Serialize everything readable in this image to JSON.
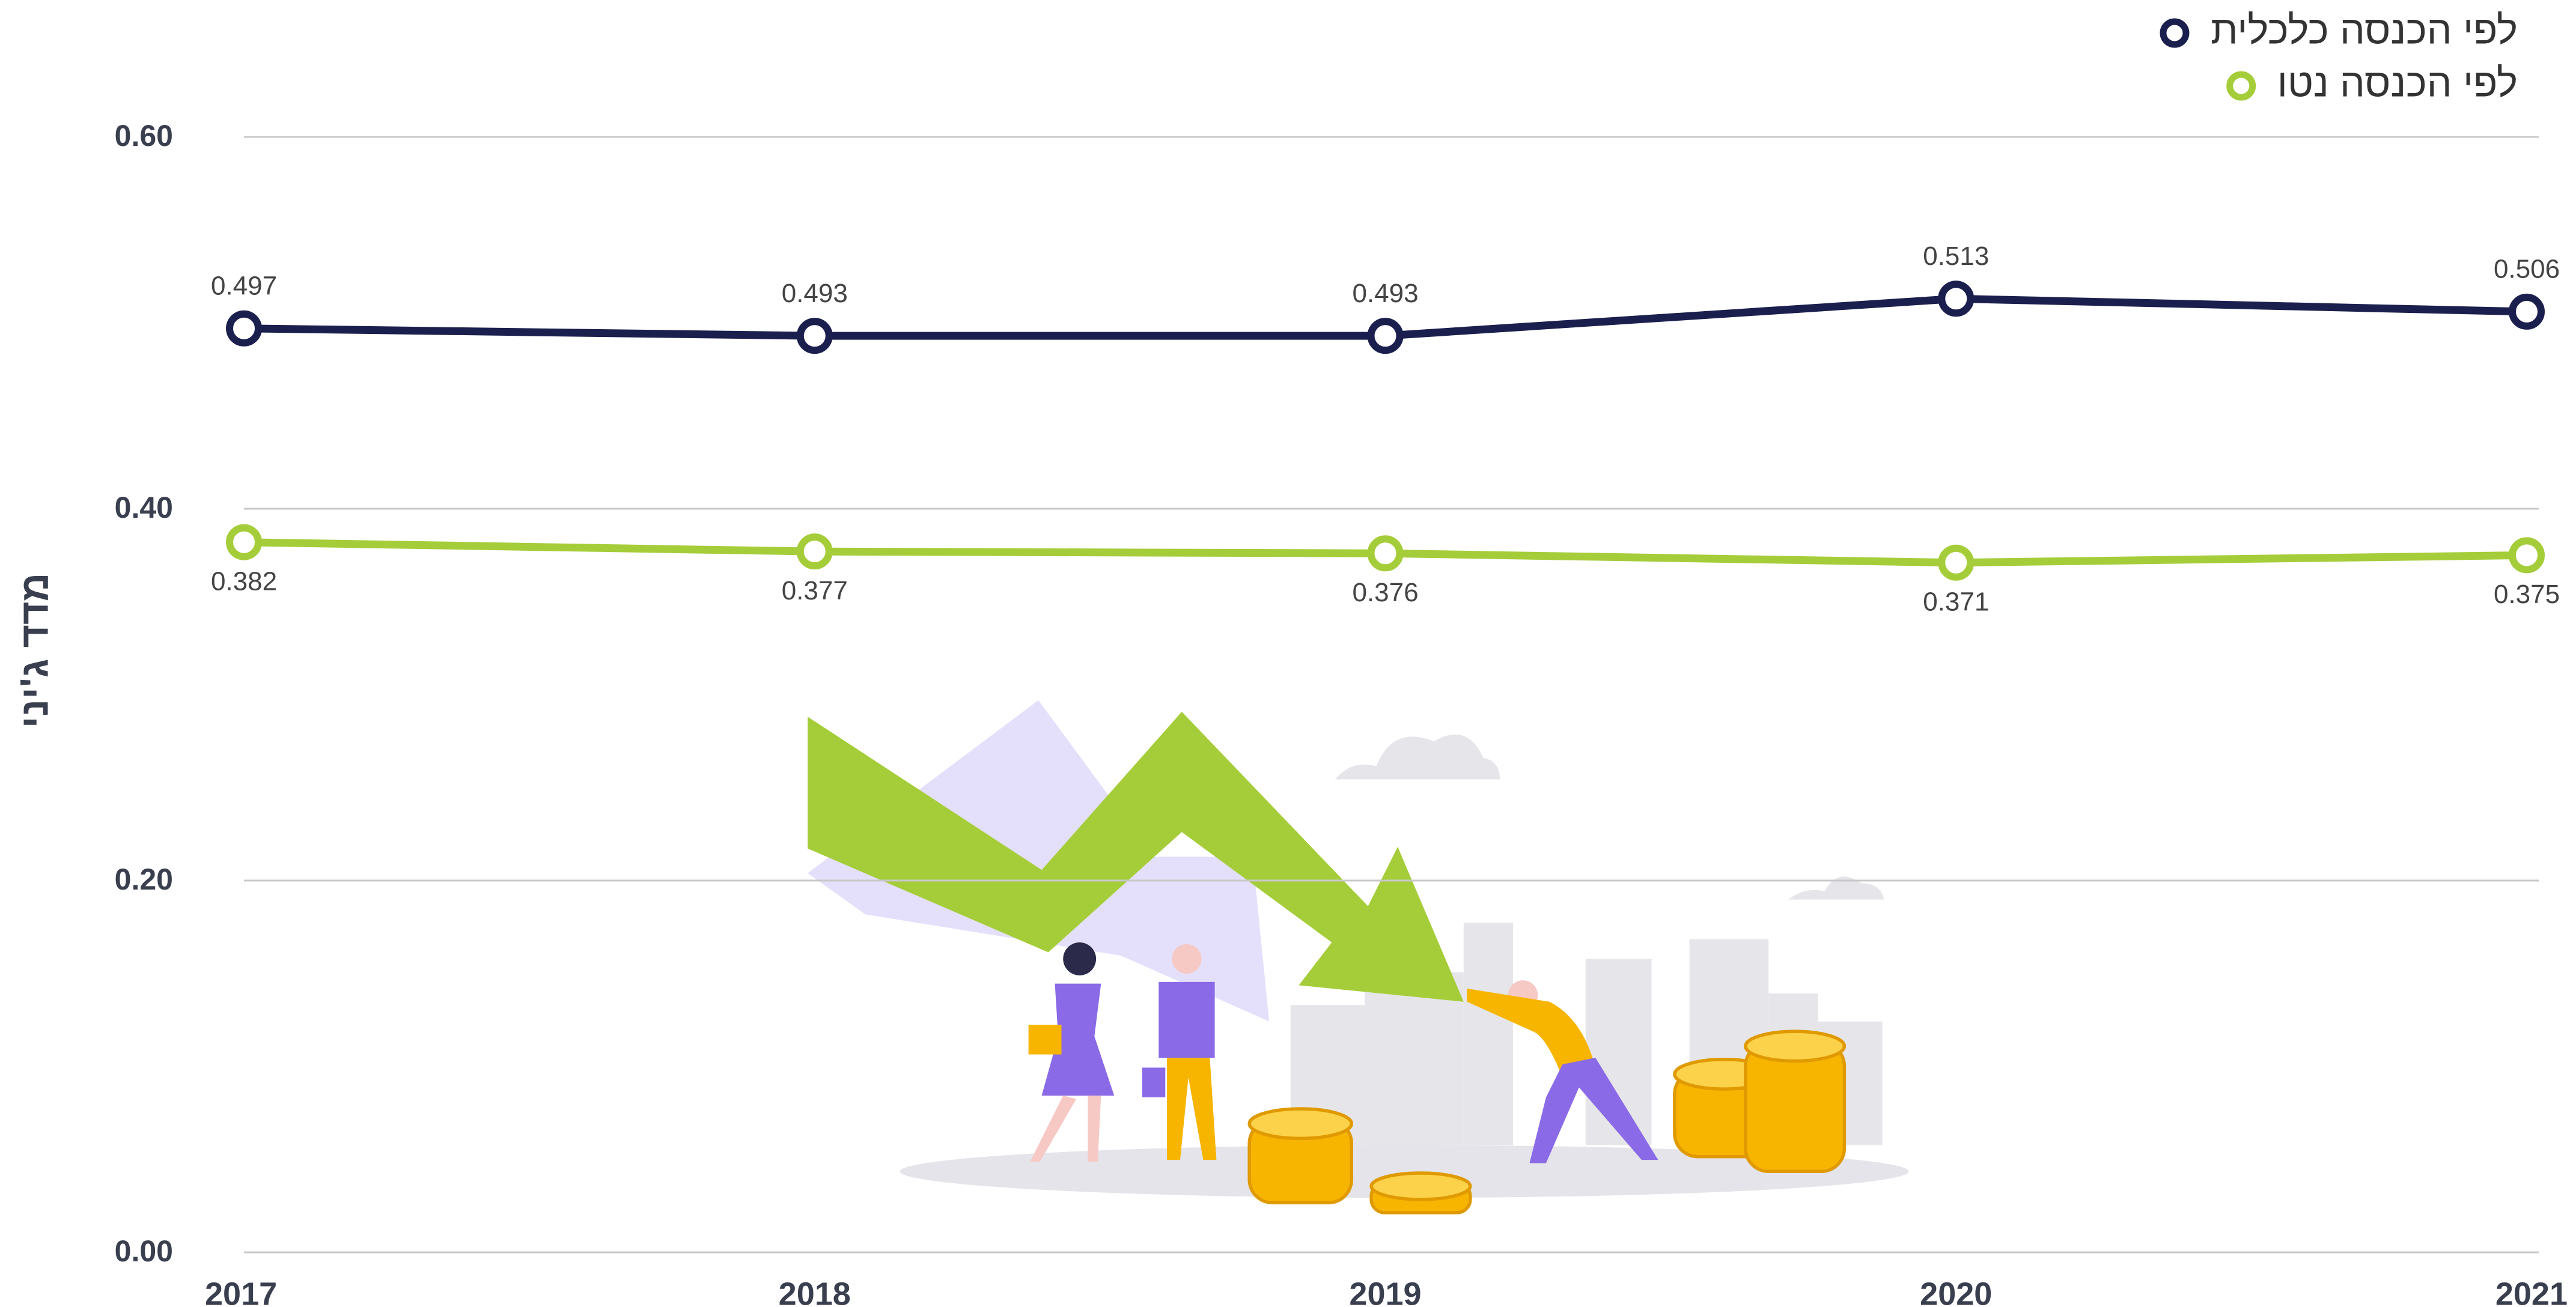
{
  "chart_data": {
    "type": "line",
    "ylabel": "מדד ג'יני",
    "categories": [
      "2017",
      "2018",
      "2019",
      "2020",
      "2021"
    ],
    "series": [
      {
        "name": "לפי הכנסה כלכלית",
        "color": "#1a1f4e",
        "values": [
          0.497,
          0.493,
          0.493,
          0.513,
          0.506
        ]
      },
      {
        "name": "לפי הכנסה נטו",
        "color": "#a5cd39",
        "values": [
          0.382,
          0.377,
          0.376,
          0.371,
          0.375
        ]
      }
    ],
    "ylim": [
      0,
      0.6
    ],
    "yticks": [
      {
        "value": 0,
        "label": "0.00"
      },
      {
        "value": 0.2,
        "label": "0.20"
      },
      {
        "value": 0.4,
        "label": "0.40"
      },
      {
        "value": 0.6,
        "label": "0.60"
      }
    ],
    "grid": true,
    "legend": "top-right"
  }
}
